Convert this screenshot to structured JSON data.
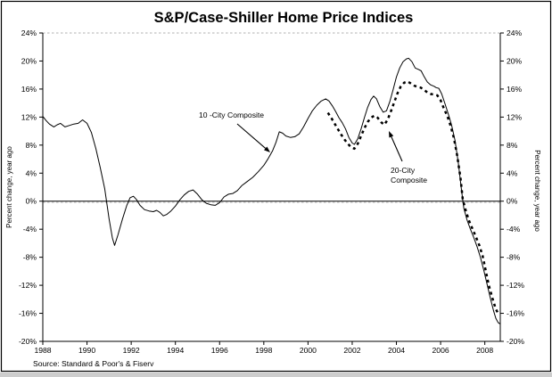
{
  "page": {
    "title": "S&P/Case-Shiller Home Price Indices",
    "source": "Source: Standard & Poor's & Fiserv"
  },
  "chart_data": {
    "type": "line",
    "title": "S&P/Case-Shiller Home Price Indices",
    "xlabel": "",
    "ylabel_left": "Percent change, year ago",
    "ylabel_right": "Percent change, year ago",
    "xlim": [
      1988,
      2008.7
    ],
    "ylim": [
      -20,
      24
    ],
    "grid": "top-dashed-and-zero-line-only",
    "zero_line": true,
    "legend_position": "inline-annotations",
    "x_ticks": [
      {
        "v": 1988,
        "label": "1988"
      },
      {
        "v": 1990,
        "label": "1990"
      },
      {
        "v": 1992,
        "label": "1992"
      },
      {
        "v": 1994,
        "label": "1994"
      },
      {
        "v": 1996,
        "label": "1996"
      },
      {
        "v": 1998,
        "label": "1998"
      },
      {
        "v": 2000,
        "label": "2000"
      },
      {
        "v": 2002,
        "label": "2002"
      },
      {
        "v": 2004,
        "label": "2004"
      },
      {
        "v": 2006,
        "label": "2006"
      },
      {
        "v": 2008,
        "label": "2008"
      }
    ],
    "y_ticks": [
      {
        "v": 24,
        "label": "24%"
      },
      {
        "v": 20,
        "label": "20%"
      },
      {
        "v": 16,
        "label": "16%"
      },
      {
        "v": 12,
        "label": "12%"
      },
      {
        "v": 8,
        "label": "8%"
      },
      {
        "v": 4,
        "label": "4%"
      },
      {
        "v": 0,
        "label": "0%"
      },
      {
        "v": -4,
        "label": "-4%"
      },
      {
        "v": -8,
        "label": "-8%"
      },
      {
        "v": -12,
        "label": "-12%"
      },
      {
        "v": -16,
        "label": "-16%"
      },
      {
        "v": -20,
        "label": "-20%"
      }
    ],
    "source": "Source: Standard & Poor's & Fiserv",
    "colors": {
      "line": "#000000",
      "grid_dashed": "#b0b0b0",
      "bottom_strip": "#cdcdcd"
    },
    "series": [
      {
        "name": "10-City Composite",
        "annotation": "10 -City Composite",
        "style": "solid",
        "points": [
          [
            1988.0,
            12.1
          ],
          [
            1988.15,
            11.5
          ],
          [
            1988.3,
            11.0
          ],
          [
            1988.5,
            10.6
          ],
          [
            1988.65,
            10.9
          ],
          [
            1988.8,
            11.1
          ],
          [
            1989.0,
            10.6
          ],
          [
            1989.2,
            10.8
          ],
          [
            1989.4,
            11.0
          ],
          [
            1989.6,
            11.1
          ],
          [
            1989.8,
            11.6
          ],
          [
            1990.0,
            11.1
          ],
          [
            1990.2,
            9.8
          ],
          [
            1990.4,
            7.5
          ],
          [
            1990.6,
            4.8
          ],
          [
            1990.8,
            1.8
          ],
          [
            1991.0,
            -2.5
          ],
          [
            1991.15,
            -5.3
          ],
          [
            1991.25,
            -6.3
          ],
          [
            1991.4,
            -4.8
          ],
          [
            1991.6,
            -2.6
          ],
          [
            1991.8,
            -0.6
          ],
          [
            1991.95,
            0.5
          ],
          [
            1992.1,
            0.7
          ],
          [
            1992.25,
            0.2
          ],
          [
            1992.4,
            -0.6
          ],
          [
            1992.6,
            -1.2
          ],
          [
            1992.8,
            -1.4
          ],
          [
            1993.0,
            -1.5
          ],
          [
            1993.15,
            -1.3
          ],
          [
            1993.3,
            -1.6
          ],
          [
            1993.45,
            -2.1
          ],
          [
            1993.6,
            -1.9
          ],
          [
            1993.8,
            -1.4
          ],
          [
            1994.0,
            -0.7
          ],
          [
            1994.2,
            0.2
          ],
          [
            1994.4,
            0.9
          ],
          [
            1994.6,
            1.4
          ],
          [
            1994.8,
            1.6
          ],
          [
            1995.0,
            1.0
          ],
          [
            1995.2,
            0.2
          ],
          [
            1995.4,
            -0.3
          ],
          [
            1995.6,
            -0.5
          ],
          [
            1995.8,
            -0.6
          ],
          [
            1996.0,
            -0.2
          ],
          [
            1996.2,
            0.6
          ],
          [
            1996.4,
            1.0
          ],
          [
            1996.6,
            1.1
          ],
          [
            1996.8,
            1.5
          ],
          [
            1997.0,
            2.2
          ],
          [
            1997.25,
            2.8
          ],
          [
            1997.5,
            3.4
          ],
          [
            1997.75,
            4.2
          ],
          [
            1998.0,
            5.1
          ],
          [
            1998.2,
            6.1
          ],
          [
            1998.4,
            7.2
          ],
          [
            1998.55,
            8.4
          ],
          [
            1998.7,
            9.9
          ],
          [
            1998.85,
            9.7
          ],
          [
            1999.0,
            9.3
          ],
          [
            1999.2,
            9.1
          ],
          [
            1999.4,
            9.2
          ],
          [
            1999.6,
            9.6
          ],
          [
            1999.8,
            10.6
          ],
          [
            2000.0,
            11.8
          ],
          [
            2000.2,
            12.9
          ],
          [
            2000.4,
            13.7
          ],
          [
            2000.6,
            14.3
          ],
          [
            2000.8,
            14.6
          ],
          [
            2000.95,
            14.3
          ],
          [
            2001.1,
            13.6
          ],
          [
            2001.25,
            12.8
          ],
          [
            2001.4,
            11.9
          ],
          [
            2001.55,
            11.2
          ],
          [
            2001.7,
            10.3
          ],
          [
            2001.85,
            9.1
          ],
          [
            2002.0,
            8.3
          ],
          [
            2002.1,
            8.1
          ],
          [
            2002.25,
            8.9
          ],
          [
            2002.4,
            10.3
          ],
          [
            2002.55,
            11.9
          ],
          [
            2002.7,
            13.4
          ],
          [
            2002.85,
            14.5
          ],
          [
            2002.97,
            15.0
          ],
          [
            2003.1,
            14.6
          ],
          [
            2003.25,
            13.5
          ],
          [
            2003.4,
            12.7
          ],
          [
            2003.55,
            12.9
          ],
          [
            2003.7,
            14.2
          ],
          [
            2003.85,
            15.9
          ],
          [
            2004.0,
            17.7
          ],
          [
            2004.15,
            19.0
          ],
          [
            2004.3,
            19.9
          ],
          [
            2004.45,
            20.3
          ],
          [
            2004.55,
            20.4
          ],
          [
            2004.7,
            19.9
          ],
          [
            2004.85,
            19.0
          ],
          [
            2005.0,
            18.8
          ],
          [
            2005.12,
            18.6
          ],
          [
            2005.25,
            17.8
          ],
          [
            2005.4,
            17.0
          ],
          [
            2005.55,
            16.6
          ],
          [
            2005.7,
            16.4
          ],
          [
            2005.8,
            16.2
          ],
          [
            2005.92,
            16.1
          ],
          [
            2006.05,
            15.3
          ],
          [
            2006.2,
            13.9
          ],
          [
            2006.35,
            12.4
          ],
          [
            2006.5,
            10.8
          ],
          [
            2006.65,
            8.7
          ],
          [
            2006.8,
            5.5
          ],
          [
            2006.95,
            1.5
          ],
          [
            2007.05,
            -1.0
          ],
          [
            2007.2,
            -2.7
          ],
          [
            2007.35,
            -4.0
          ],
          [
            2007.5,
            -5.2
          ],
          [
            2007.65,
            -6.5
          ],
          [
            2007.8,
            -8.0
          ],
          [
            2007.95,
            -9.8
          ],
          [
            2008.1,
            -11.8
          ],
          [
            2008.25,
            -13.8
          ],
          [
            2008.4,
            -15.7
          ],
          [
            2008.5,
            -16.7
          ],
          [
            2008.6,
            -17.3
          ],
          [
            2008.68,
            -17.5
          ]
        ]
      },
      {
        "name": "20-City Composite",
        "annotation_lines": [
          "20-City",
          "Composite"
        ],
        "style": "dotted",
        "points": [
          [
            2000.9,
            12.6
          ],
          [
            2001.05,
            11.9
          ],
          [
            2001.2,
            11.1
          ],
          [
            2001.35,
            10.3
          ],
          [
            2001.5,
            9.5
          ],
          [
            2001.65,
            8.8
          ],
          [
            2001.8,
            8.2
          ],
          [
            2001.95,
            7.7
          ],
          [
            2002.1,
            7.5
          ],
          [
            2002.25,
            8.2
          ],
          [
            2002.4,
            9.3
          ],
          [
            2002.55,
            10.4
          ],
          [
            2002.7,
            11.3
          ],
          [
            2002.85,
            11.9
          ],
          [
            2003.0,
            12.2
          ],
          [
            2003.15,
            11.9
          ],
          [
            2003.3,
            11.3
          ],
          [
            2003.45,
            10.9
          ],
          [
            2003.6,
            11.6
          ],
          [
            2003.75,
            12.8
          ],
          [
            2003.9,
            14.1
          ],
          [
            2004.05,
            15.4
          ],
          [
            2004.2,
            16.4
          ],
          [
            2004.35,
            16.9
          ],
          [
            2004.5,
            17.1
          ],
          [
            2004.65,
            16.8
          ],
          [
            2004.8,
            16.5
          ],
          [
            2004.95,
            16.3
          ],
          [
            2005.1,
            16.2
          ],
          [
            2005.25,
            15.9
          ],
          [
            2005.4,
            15.5
          ],
          [
            2005.55,
            15.3
          ],
          [
            2005.7,
            15.2
          ],
          [
            2005.85,
            15.1
          ],
          [
            2006.0,
            14.4
          ],
          [
            2006.15,
            13.2
          ],
          [
            2006.3,
            12.2
          ],
          [
            2006.45,
            10.8
          ],
          [
            2006.6,
            9.0
          ],
          [
            2006.75,
            6.5
          ],
          [
            2006.9,
            3.3
          ],
          [
            2007.0,
            0.3
          ],
          [
            2007.15,
            -1.5
          ],
          [
            2007.3,
            -2.9
          ],
          [
            2007.45,
            -4.0
          ],
          [
            2007.6,
            -5.1
          ],
          [
            2007.75,
            -6.3
          ],
          [
            2007.9,
            -7.8
          ],
          [
            2008.0,
            -9.3
          ],
          [
            2008.1,
            -10.8
          ],
          [
            2008.2,
            -12.2
          ],
          [
            2008.35,
            -13.9
          ],
          [
            2008.5,
            -15.4
          ],
          [
            2008.6,
            -16.0
          ]
        ]
      }
    ]
  }
}
